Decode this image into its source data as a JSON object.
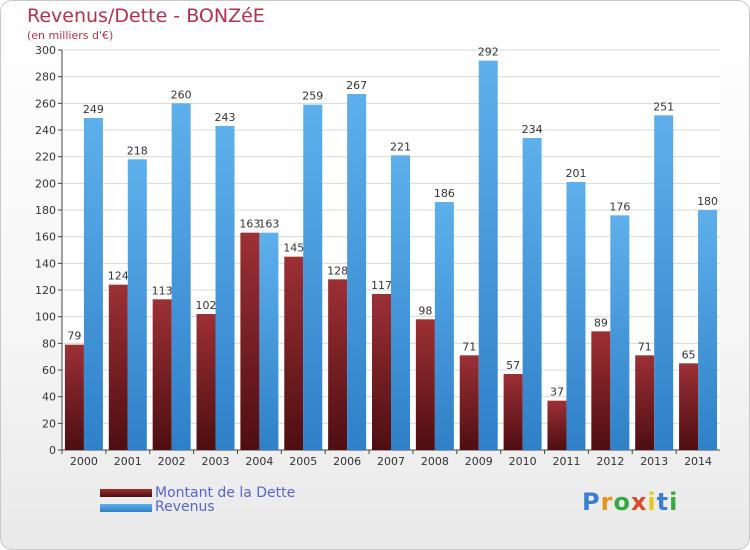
{
  "title": "Revenus/Dette - BONZéE",
  "subtitle": "(en milliers d'€)",
  "logo": "Proxiti",
  "colors": {
    "dette": "#7b1f23",
    "revenus": "#4fa3e3",
    "title": "#b5304f",
    "legend": "#5566cc"
  },
  "chart_data": {
    "type": "bar",
    "title": "Revenus/Dette - BONZéE",
    "subtitle": "(en milliers d'€)",
    "categories": [
      "2000",
      "2001",
      "2002",
      "2003",
      "2004",
      "2005",
      "2006",
      "2007",
      "2008",
      "2009",
      "2010",
      "2011",
      "2012",
      "2013",
      "2014"
    ],
    "series": [
      {
        "name": "Montant de la Dette",
        "values": [
          79,
          124,
          113,
          102,
          163,
          145,
          128,
          117,
          98,
          71,
          57,
          37,
          89,
          71,
          65
        ]
      },
      {
        "name": "Revenus",
        "values": [
          249,
          218,
          260,
          243,
          163,
          259,
          267,
          221,
          186,
          292,
          234,
          201,
          176,
          251,
          180
        ]
      }
    ],
    "ylim": [
      0,
      300
    ],
    "yticks": [
      0,
      20,
      40,
      60,
      80,
      100,
      120,
      140,
      160,
      180,
      200,
      220,
      240,
      260,
      280,
      300
    ],
    "grid": true,
    "legend": "bottom-left"
  }
}
